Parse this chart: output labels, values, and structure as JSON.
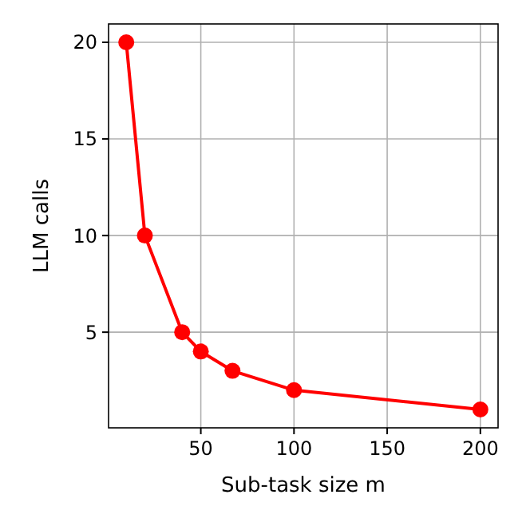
{
  "chart_data": {
    "type": "line",
    "xlabel": "Sub-task size m",
    "ylabel": "LLM calls",
    "x": [
      10,
      20,
      40,
      50,
      67,
      100,
      200
    ],
    "series": [
      {
        "color": "#ff0000",
        "values": [
          20,
          10,
          5,
          4,
          3,
          2,
          1
        ]
      }
    ],
    "xlim": [
      0.5,
      209.5
    ],
    "ylim": [
      0.05,
      20.95
    ],
    "xticks": [
      50,
      100,
      150,
      200
    ],
    "yticks": [
      5,
      10,
      15,
      20
    ],
    "grid": true,
    "marker": "circle",
    "line_style": "solid"
  }
}
